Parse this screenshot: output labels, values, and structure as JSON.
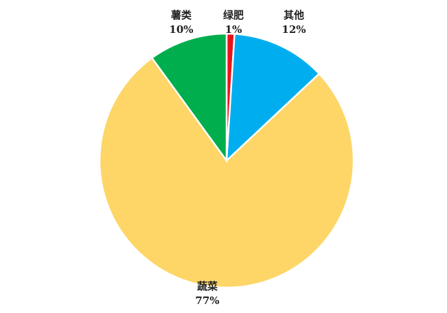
{
  "chart_data": {
    "type": "pie",
    "start": "top",
    "direction": "clockwise",
    "slices": [
      {
        "label": "绿肥",
        "value": 1,
        "pct": "1%",
        "color": "#E8141B"
      },
      {
        "label": "其他",
        "value": 12,
        "pct": "12%",
        "color": "#00AEEF"
      },
      {
        "label": "蔬菜",
        "value": 77,
        "pct": "77%",
        "color": "#FDD667"
      },
      {
        "label": "薯类",
        "value": 10,
        "pct": "10%",
        "color": "#00AE4D"
      }
    ]
  }
}
